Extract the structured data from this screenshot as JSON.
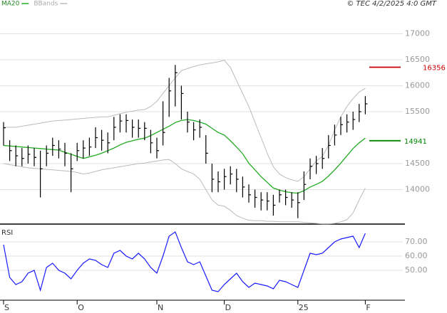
{
  "chart_data": [
    {
      "type": "ohlc",
      "annotation": "© TEC 4/2/2025 4:0 GMT",
      "categories": [
        "S",
        null,
        null,
        null,
        null,
        null,
        null,
        null,
        null,
        null,
        null,
        null,
        "O",
        null,
        null,
        null,
        null,
        null,
        null,
        null,
        null,
        null,
        null,
        null,
        null,
        "N",
        null,
        null,
        null,
        null,
        null,
        null,
        null,
        null,
        null,
        null,
        "D",
        null,
        null,
        null,
        null,
        null,
        null,
        null,
        null,
        null,
        null,
        null,
        "25",
        null,
        null,
        null,
        null,
        null,
        null,
        null,
        null,
        null,
        null,
        "F"
      ],
      "high": [
        15300,
        14950,
        14850,
        14800,
        14850,
        14800,
        14750,
        14850,
        15000,
        14950,
        14900,
        14700,
        14900,
        14950,
        15000,
        15200,
        15150,
        15100,
        15400,
        15450,
        15450,
        15350,
        15350,
        15300,
        15150,
        15000,
        15700,
        16150,
        16400,
        16000,
        15500,
        15300,
        15350,
        15050,
        14500,
        14350,
        14400,
        14450,
        14400,
        14250,
        14100,
        14000,
        13950,
        13950,
        13900,
        14000,
        14000,
        13950,
        13950,
        14350,
        14600,
        14650,
        14800,
        15050,
        15250,
        15400,
        15450,
        15500,
        15650,
        15800
      ],
      "low": [
        14850,
        14550,
        14450,
        14450,
        14500,
        14450,
        13850,
        14450,
        14650,
        14600,
        14450,
        13950,
        14550,
        14600,
        14650,
        14800,
        14750,
        14700,
        14950,
        15100,
        15100,
        15000,
        15000,
        14950,
        14700,
        14600,
        14850,
        15400,
        15600,
        15350,
        15100,
        14950,
        15000,
        14500,
        13950,
        13950,
        14000,
        14100,
        13950,
        13850,
        13750,
        13650,
        13600,
        13600,
        13500,
        13750,
        13700,
        13650,
        13450,
        13800,
        14200,
        14300,
        14400,
        14600,
        14850,
        15050,
        15100,
        15150,
        15300,
        15450
      ],
      "close": [
        15190,
        14750,
        14650,
        14600,
        14680,
        14620,
        14400,
        14700,
        14850,
        14780,
        14700,
        14400,
        14750,
        14800,
        14820,
        15000,
        14950,
        14900,
        15200,
        15320,
        15330,
        15200,
        15180,
        15180,
        14900,
        14750,
        15100,
        15900,
        16250,
        15850,
        15300,
        15150,
        15200,
        14700,
        14200,
        14150,
        14250,
        14300,
        14200,
        14050,
        13900,
        13850,
        13800,
        13780,
        13700,
        13900,
        13850,
        13800,
        13750,
        14100,
        14450,
        14500,
        14600,
        14850,
        15050,
        15250,
        15300,
        15350,
        15500,
        15650
      ],
      "bar_color": "#000000",
      "series": [
        {
          "name": "MA20",
          "color": "#22aa22",
          "values": [
            14850,
            14840,
            14830,
            14820,
            14810,
            14800,
            14790,
            14780,
            14770,
            14760,
            14720,
            14680,
            14640,
            14600,
            14630,
            14660,
            14700,
            14750,
            14800,
            14860,
            14910,
            14940,
            14970,
            14990,
            15040,
            15100,
            15160,
            15220,
            15290,
            15330,
            15350,
            15330,
            15300,
            15260,
            15180,
            15100,
            15050,
            14940,
            14820,
            14690,
            14510,
            14380,
            14250,
            14140,
            14030,
            13990,
            13960,
            13940,
            13930,
            13980,
            14050,
            14100,
            14160,
            14260,
            14380,
            14510,
            14650,
            14790,
            14900,
            14990
          ]
        },
        {
          "name": "BBands",
          "color": "#bbbbbb",
          "values": [
            15200,
            15200,
            15200,
            15220,
            15240,
            15260,
            15280,
            15300,
            15320,
            15330,
            15340,
            15350,
            15360,
            15370,
            15380,
            15390,
            15400,
            15400,
            15430,
            15460,
            15490,
            15510,
            15530,
            15540,
            15600,
            15700,
            15850,
            16000,
            16150,
            16290,
            16330,
            16370,
            16400,
            16420,
            16440,
            16460,
            16490,
            16350,
            16100,
            15850,
            15600,
            15300,
            15000,
            14700,
            14440,
            14300,
            14230,
            14190,
            14160,
            14250,
            14400,
            14550,
            14640,
            14850,
            15150,
            15400,
            15600,
            15750,
            15880,
            15950
          ],
          "lower": [
            14500,
            14480,
            14460,
            14440,
            14420,
            14410,
            14400,
            14390,
            14380,
            14370,
            14360,
            14350,
            14330,
            14300,
            14320,
            14350,
            14380,
            14400,
            14420,
            14440,
            14460,
            14480,
            14500,
            14510,
            14530,
            14550,
            14570,
            14580,
            14500,
            14400,
            14350,
            14300,
            14200,
            14000,
            13800,
            13700,
            13680,
            13600,
            13500,
            13450,
            13410,
            13400,
            13400,
            13390,
            13390,
            13380,
            13380,
            13380,
            13380,
            13370,
            13360,
            13350,
            13340,
            13340,
            13350,
            13380,
            13420,
            13550,
            13800,
            14030
          ]
        }
      ],
      "markers": [
        {
          "value": 16356,
          "color": "#cc0000"
        },
        {
          "value": 14941,
          "color": "#008800"
        }
      ],
      "ylim": [
        13350,
        17650
      ],
      "yticks": [
        14000,
        14500,
        15500,
        16000,
        16500,
        17000
      ],
      "grid": true
    },
    {
      "type": "line",
      "title": "RSI",
      "series": [
        {
          "color": "#1a1aff",
          "values": [
            68,
            45,
            40,
            42,
            48,
            50,
            36,
            52,
            55,
            50,
            48,
            44,
            50,
            55,
            58,
            57,
            54,
            52,
            62,
            64,
            60,
            58,
            62,
            58,
            52,
            48,
            60,
            74,
            77,
            66,
            56,
            54,
            56,
            46,
            36,
            35,
            40,
            44,
            48,
            42,
            38,
            41,
            40,
            39,
            37,
            43,
            42,
            40,
            38,
            50,
            62,
            61,
            62,
            66,
            70,
            72,
            73,
            74,
            66,
            76
          ]
        }
      ],
      "ylim": [
        30,
        80
      ],
      "yticks": [
        {
          "value": 50,
          "label": "50.00"
        },
        {
          "value": 60,
          "label": "60.00"
        },
        {
          "value": 70,
          "label": "70.00"
        }
      ]
    }
  ]
}
